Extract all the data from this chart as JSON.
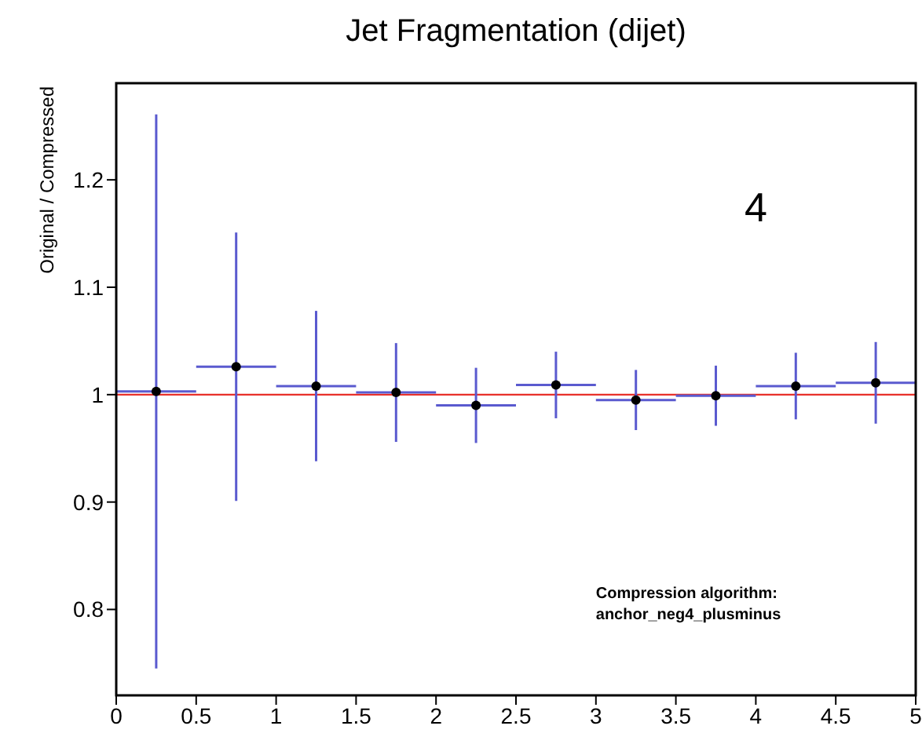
{
  "chart_data": {
    "type": "scatter",
    "title": "Jet Fragmentation (dijet)",
    "ylabel": "Original / Compressed",
    "x": [
      0.25,
      0.75,
      1.25,
      1.75,
      2.25,
      2.75,
      3.25,
      3.75,
      4.25,
      4.75
    ],
    "series": [
      {
        "color": "#000000",
        "values": [
          1.003,
          1.026,
          1.008,
          1.002,
          0.99,
          1.009,
          0.995,
          0.999,
          1.008,
          1.011
        ],
        "errors": [
          0.258,
          0.125,
          0.07,
          0.046,
          0.035,
          0.031,
          0.028,
          0.028,
          0.031,
          0.038
        ],
        "xerrors": [
          0.25,
          0.25,
          0.25,
          0.25,
          0.25,
          0.25,
          0.25,
          0.25,
          0.25,
          0.25
        ]
      }
    ],
    "xlim": [
      0,
      5
    ],
    "xticks": [
      0,
      0.5,
      1,
      1.5,
      2,
      2.5,
      3,
      3.5,
      4,
      4.5,
      5
    ],
    "ylim": [
      0.72,
      1.29
    ],
    "yticks": [
      0.8,
      0.9,
      1,
      1.1,
      1.2
    ],
    "ref_lines": [
      {
        "axis": "y",
        "value": 1,
        "color": "#e8302a"
      }
    ],
    "annotations": [
      "4",
      "Compression algorithm:\nanchor_neg4_plusminus"
    ],
    "marker": "circle"
  }
}
